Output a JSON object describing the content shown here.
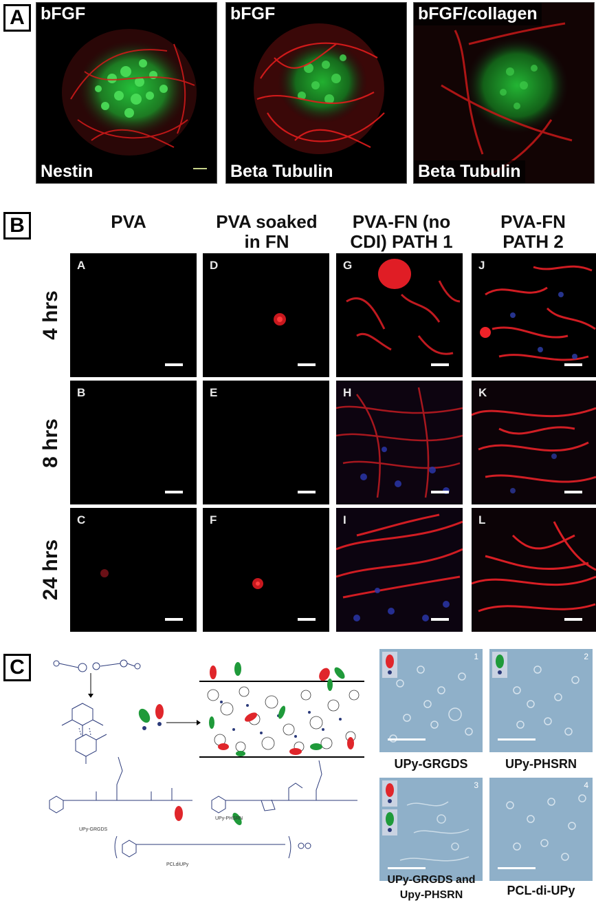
{
  "panel_a": {
    "letter": "A",
    "images": [
      {
        "top_label": "bFGF",
        "bottom_label": "Nestin"
      },
      {
        "top_label": "bFGF",
        "bottom_label": "Beta Tubulin"
      },
      {
        "top_label": "bFGF/collagen",
        "bottom_label": "Beta Tubulin"
      }
    ]
  },
  "panel_b": {
    "letter": "B",
    "columns": [
      {
        "line1": "PVA",
        "line2": ""
      },
      {
        "line1": "PVA soaked",
        "line2": "in FN"
      },
      {
        "line1": "PVA-FN (no",
        "line2": "CDI) PATH 1"
      },
      {
        "line1": "PVA-FN",
        "line2": "PATH 2"
      }
    ],
    "rows": [
      "4 hrs",
      "8 hrs",
      "24 hrs"
    ],
    "cells": [
      "A",
      "D",
      "G",
      "J",
      "B",
      "E",
      "H",
      "K",
      "C",
      "F",
      "I",
      "L"
    ]
  },
  "panel_c": {
    "letter": "C",
    "chem_labels": [
      "UPy-GRGDS",
      "UPy-PHSRN",
      "PCLdiUPy"
    ],
    "images": [
      {
        "number": "1",
        "caption": "UPy-GRGDS"
      },
      {
        "number": "2",
        "caption": "UPy-PHSRN"
      },
      {
        "number": "3",
        "caption": "UPy-GRGDS and Upy-PHSRN"
      },
      {
        "number": "4",
        "caption": "PCL-di-UPy"
      }
    ],
    "caption3_line1": "UPy-GRGDS and",
    "caption3_line2": "Upy-PHSRN",
    "colors": {
      "red_peptide": "#e0262b",
      "green_peptide": "#1f9a3a",
      "polymer": "#2b3a7a"
    }
  }
}
